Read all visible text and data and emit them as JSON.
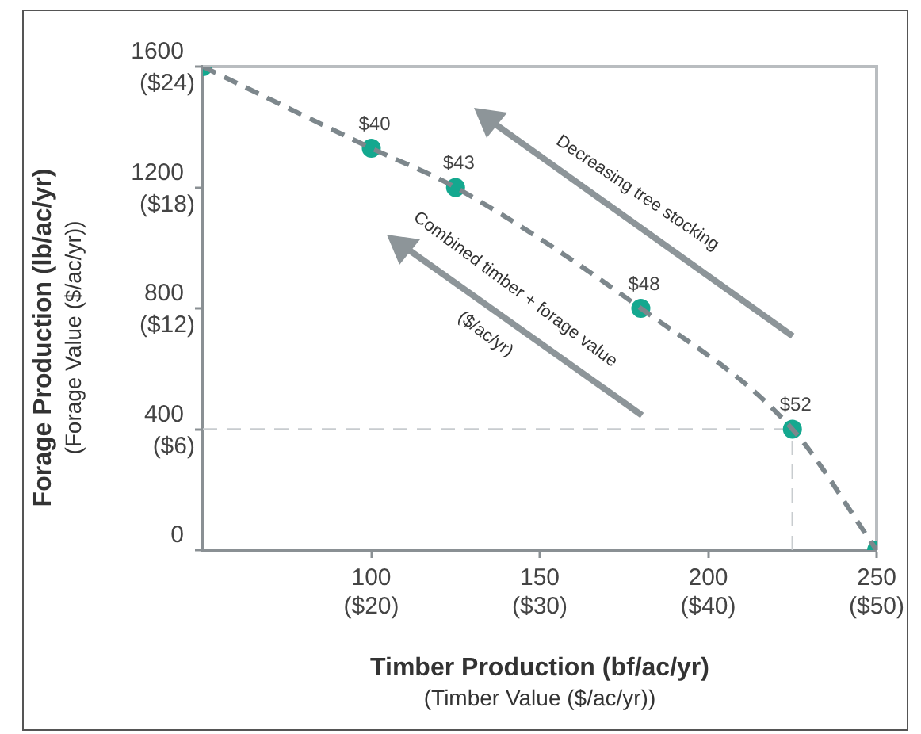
{
  "chart_data": {
    "type": "line",
    "xlabel": "Timber Production (bf/ac/yr)\n(Timber Value ($/ac/yr))",
    "ylabel": "Forage Production (lb/ac/yr)\n(Forage Value ($/ac/yr))",
    "x": [
      50,
      100,
      125,
      180,
      225,
      250
    ],
    "series": [
      {
        "color": "#7d878c",
        "marker": "none",
        "line_style": "dashed",
        "values": [
          1600,
          1330,
          1200,
          800,
          400,
          0
        ]
      },
      {
        "type": "scatter",
        "color": "#14a88f",
        "marker": "circle",
        "values": [
          1600,
          1330,
          1200,
          800,
          400,
          0
        ]
      }
    ],
    "xlim": [
      50,
      250
    ],
    "xticks": [
      100,
      150,
      200,
      250
    ],
    "x2lim": [
      10,
      50
    ],
    "x2ticks": [
      {
        "value": 20,
        "label": "($20)"
      },
      {
        "value": 30,
        "label": "($30)"
      },
      {
        "value": 40,
        "label": "($40)"
      },
      {
        "value": 50,
        "label": "($50)"
      }
    ],
    "ylim": [
      0,
      1600
    ],
    "yticks": [
      0,
      400,
      800,
      1200,
      1600
    ],
    "y2lim": [
      0,
      24
    ],
    "y2ticks": [
      {
        "value": 6,
        "label": "($6)"
      },
      {
        "value": 12,
        "label": "($12)"
      },
      {
        "value": 18,
        "label": "($18)"
      },
      {
        "value": 24,
        "label": "($24)"
      }
    ],
    "ref_lines": [
      {
        "axis": "y",
        "value": 400,
        "color": "#c8cccf",
        "line_style": "dashed"
      },
      {
        "axis": "x",
        "value": 225,
        "color": "#c8cccf",
        "line_style": "dashed"
      }
    ],
    "annotations": [
      {
        "text": "$40",
        "x": 100,
        "y": 1330
      },
      {
        "text": "$43",
        "x": 125,
        "y": 1200
      },
      {
        "text": "$48",
        "x": 180,
        "y": 800
      },
      {
        "text": "$52",
        "x": 225,
        "y": 400
      },
      "Decreasing tree stocking",
      "Combined timber + forage value",
      "($/ac/yr)"
    ]
  }
}
